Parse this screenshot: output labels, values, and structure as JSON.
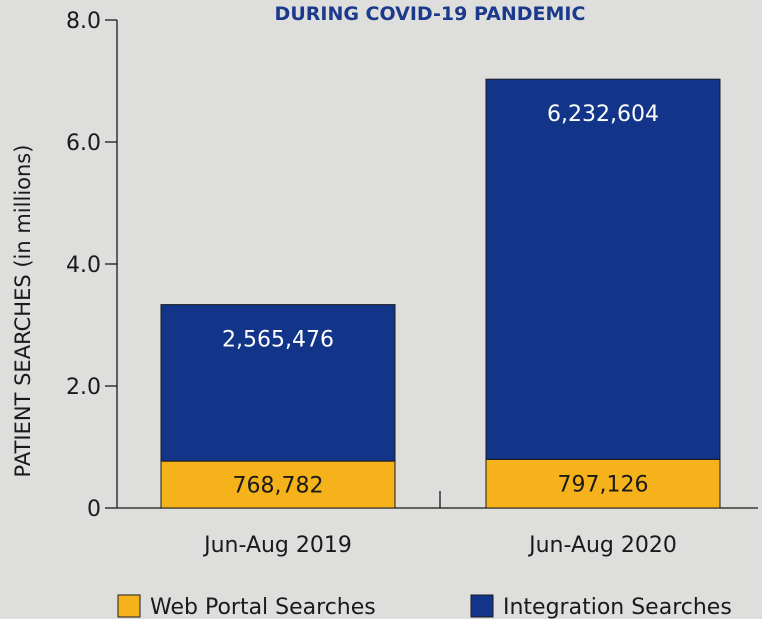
{
  "chart_data": {
    "type": "bar",
    "stacked": true,
    "title": "DURING COVID-19 PANDEMIC",
    "ylabel": "PATIENT SEARCHES (in millions)",
    "xlabel": "",
    "ylim": [
      0,
      8.0
    ],
    "yticks": [
      "0",
      "2.0",
      "4.0",
      "6.0",
      "8.0"
    ],
    "ytick_values": [
      0,
      2.0,
      4.0,
      6.0,
      8.0
    ],
    "categories": [
      "Jun-Aug 2019",
      "Jun-Aug 2020"
    ],
    "series": [
      {
        "name": "Web Portal Searches",
        "color": "#f5b21a",
        "values": [
          0.768782,
          0.797126
        ],
        "labels": [
          "768,782",
          "797,126"
        ]
      },
      {
        "name": "Integration Searches",
        "color": "#12358a",
        "values": [
          2.565476,
          6.232604
        ],
        "labels": [
          "2,565,476",
          "6,232,604"
        ]
      }
    ],
    "grid": false,
    "legend": "bottom"
  }
}
